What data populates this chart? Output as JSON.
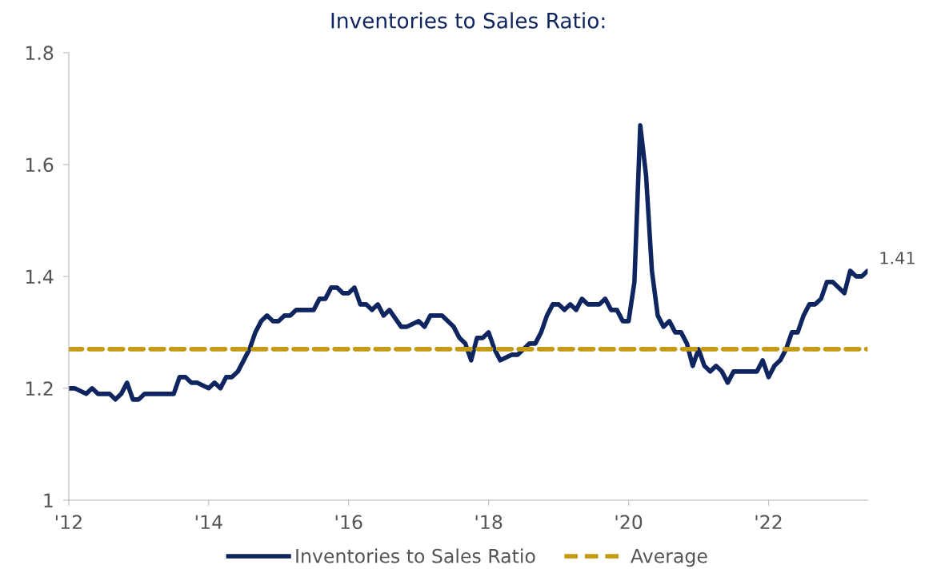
{
  "chart_data": {
    "type": "line",
    "title": "Inventories to Sales Ratio:",
    "x": [
      "2012-01",
      "2012-02",
      "2012-04",
      "2012-05",
      "2012-06",
      "2012-08",
      "2012-09",
      "2012-10",
      "2012-11",
      "2012-12",
      "2013-01",
      "2013-02",
      "2013-07",
      "2013-08",
      "2013-09",
      "2013-10",
      "2013-11",
      "2014-01",
      "2014-02",
      "2014-03",
      "2014-04",
      "2014-05",
      "2014-06",
      "2014-07",
      "2014-08",
      "2014-09",
      "2014-10",
      "2014-11",
      "2014-12",
      "2015-01",
      "2015-02",
      "2015-03",
      "2015-04",
      "2015-07",
      "2015-08",
      "2015-09",
      "2015-10",
      "2015-11",
      "2015-12",
      "2016-01",
      "2016-02",
      "2016-03",
      "2016-04",
      "2016-05",
      "2016-06",
      "2016-07",
      "2016-08",
      "2016-10",
      "2016-11",
      "2017-01",
      "2017-02",
      "2017-03",
      "2017-05",
      "2017-06",
      "2017-07",
      "2017-08",
      "2017-09",
      "2017-10",
      "2017-11",
      "2017-12",
      "2018-01",
      "2018-02",
      "2018-03",
      "2018-05",
      "2018-06",
      "2018-07",
      "2018-08",
      "2018-09",
      "2018-10",
      "2018-11",
      "2018-12",
      "2019-01",
      "2019-02",
      "2019-03",
      "2019-04",
      "2019-05",
      "2019-06",
      "2019-08",
      "2019-09",
      "2019-10",
      "2019-11",
      "2019-12",
      "2020-01",
      "2020-02",
      "2020-03",
      "2020-04",
      "2020-05",
      "2020-06",
      "2020-07",
      "2020-08",
      "2020-09",
      "2020-10",
      "2020-11",
      "2020-12",
      "2021-01",
      "2021-02",
      "2021-03",
      "2021-04",
      "2021-05",
      "2021-06",
      "2021-07",
      "2021-11",
      "2021-12",
      "2022-01",
      "2022-02",
      "2022-03",
      "2022-04",
      "2022-05",
      "2022-06",
      "2022-07",
      "2022-08",
      "2022-09",
      "2022-10",
      "2022-11",
      "2022-12",
      "2023-01",
      "2023-02",
      "2023-03",
      "2023-04",
      "2023-05",
      "2023-06"
    ],
    "series": [
      {
        "name": "Inventories to Sales Ratio",
        "color": "#0f2560",
        "values": [
          1.2,
          1.2,
          1.19,
          1.2,
          1.19,
          1.19,
          1.18,
          1.19,
          1.21,
          1.18,
          1.18,
          1.19,
          1.19,
          1.22,
          1.22,
          1.21,
          1.21,
          1.2,
          1.21,
          1.2,
          1.22,
          1.22,
          1.23,
          1.25,
          1.27,
          1.3,
          1.32,
          1.33,
          1.32,
          1.32,
          1.33,
          1.33,
          1.34,
          1.34,
          1.36,
          1.36,
          1.38,
          1.38,
          1.37,
          1.37,
          1.38,
          1.35,
          1.35,
          1.34,
          1.35,
          1.33,
          1.34,
          1.31,
          1.31,
          1.32,
          1.31,
          1.33,
          1.33,
          1.32,
          1.31,
          1.29,
          1.28,
          1.25,
          1.29,
          1.29,
          1.3,
          1.27,
          1.25,
          1.26,
          1.26,
          1.27,
          1.28,
          1.28,
          1.3,
          1.33,
          1.35,
          1.35,
          1.34,
          1.35,
          1.34,
          1.36,
          1.35,
          1.35,
          1.36,
          1.34,
          1.34,
          1.32,
          1.32,
          1.39,
          1.67,
          1.58,
          1.41,
          1.33,
          1.31,
          1.32,
          1.3,
          1.3,
          1.28,
          1.24,
          1.27,
          1.24,
          1.23,
          1.24,
          1.23,
          1.21,
          1.23,
          1.23,
          1.25,
          1.22,
          1.24,
          1.25,
          1.27,
          1.3,
          1.3,
          1.33,
          1.35,
          1.35,
          1.36,
          1.39,
          1.39,
          1.38,
          1.37,
          1.41,
          1.4,
          1.4,
          1.41
        ]
      }
    ],
    "ref_lines": [
      {
        "axis": "y",
        "value": 1.27,
        "label": "Average",
        "color": "#c59a10",
        "line_style": "dashed"
      }
    ],
    "annotations": [
      {
        "text": "1.41",
        "x": "2023-06",
        "y": 1.41
      }
    ],
    "xlim": [
      "2012-01",
      "2023-06"
    ],
    "xticks": [
      {
        "value": "2012-01",
        "label": "'12"
      },
      {
        "value": "2014-01",
        "label": "'14"
      },
      {
        "value": "2016-01",
        "label": "'16"
      },
      {
        "value": "2018-01",
        "label": "'18"
      },
      {
        "value": "2020-01",
        "label": "'20"
      },
      {
        "value": "2022-01",
        "label": "'22"
      }
    ],
    "ylim": [
      1,
      1.8
    ],
    "yticks": [
      1,
      1.2,
      1.4,
      1.6,
      1.8
    ],
    "grid": false,
    "legend": "bottom",
    "marker": "none",
    "line_style": "solid"
  }
}
